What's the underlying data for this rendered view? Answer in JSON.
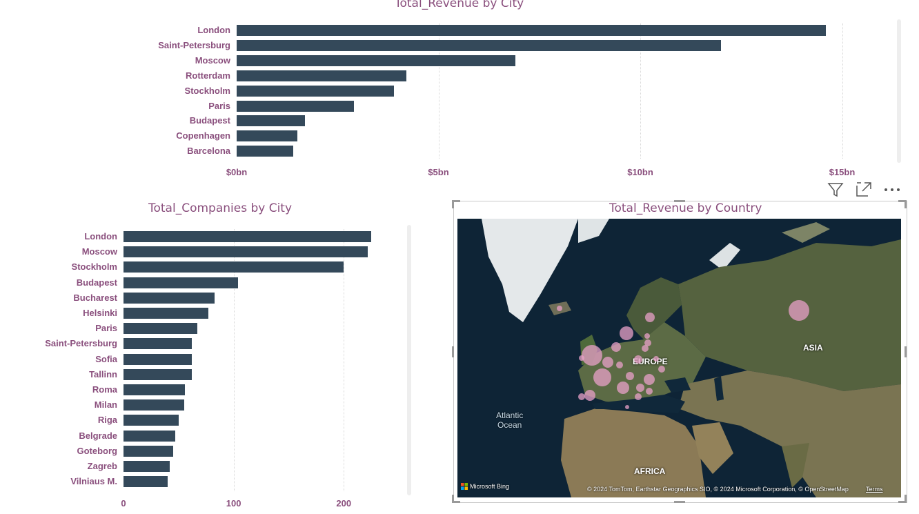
{
  "colors": {
    "bar": "#34495a",
    "label": "#8a4f7d",
    "bubble": "#e8a0c8"
  },
  "revenue_by_city": {
    "title": "Total_Revenue by City",
    "chart_data": {
      "type": "bar",
      "orientation": "horizontal",
      "title": "Total_Revenue by City",
      "categories": [
        "London",
        "Saint-Petersburg",
        "Moscow",
        "Rotterdam",
        "Stockholm",
        "Paris",
        "Budapest",
        "Copenhagen",
        "Barcelona"
      ],
      "values": [
        14.6,
        12.0,
        6.9,
        4.2,
        3.9,
        2.9,
        1.7,
        1.5,
        1.4
      ],
      "units": "bn USD",
      "xlim": [
        0,
        16
      ],
      "ticks": [
        {
          "value": 0,
          "label": "$0bn"
        },
        {
          "value": 5,
          "label": "$5bn"
        },
        {
          "value": 10,
          "label": "$10bn"
        },
        {
          "value": 15,
          "label": "$15bn"
        }
      ],
      "grid": true
    }
  },
  "companies_by_city": {
    "title": "Total_Companies by City",
    "chart_data": {
      "type": "bar",
      "orientation": "horizontal",
      "title": "Total_Companies by City",
      "categories": [
        "London",
        "Moscow",
        "Stockholm",
        "Budapest",
        "Bucharest",
        "Helsinki",
        "Paris",
        "Saint-Petersburg",
        "Sofia",
        "Tallinn",
        "Roma",
        "Milan",
        "Riga",
        "Belgrade",
        "Goteborg",
        "Zagreb",
        "Vilniaus M."
      ],
      "values": [
        225,
        222,
        200,
        104,
        83,
        77,
        67,
        62,
        62,
        62,
        56,
        55,
        50,
        47,
        45,
        42,
        40
      ],
      "xlim": [
        0,
        260
      ],
      "ticks": [
        {
          "value": 0,
          "label": "0"
        },
        {
          "value": 100,
          "label": "100"
        },
        {
          "value": 200,
          "label": "200"
        }
      ],
      "grid": true
    }
  },
  "revenue_by_country": {
    "title": "Total_Revenue by Country",
    "map": {
      "labels": {
        "europe": "EUROPE",
        "asia": "ASIA",
        "africa": "AFRICA",
        "ocean_line1": "Atlantic",
        "ocean_line2": "Ocean"
      },
      "bing_logo": "Microsoft Bing",
      "attribution": "© 2024 TomTom, Earthstar Geographics SIO, © 2024 Microsoft Corporation, © OpenStreetMap",
      "terms": "Terms"
    },
    "header_icons": [
      "filter-icon",
      "focus-mode-icon",
      "more-options-icon"
    ]
  }
}
